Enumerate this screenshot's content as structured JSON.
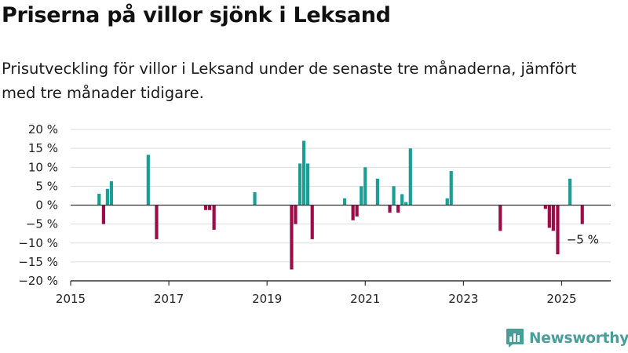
{
  "title": "Priserna på villor sjönk i Leksand",
  "subtitle": "Prisutveckling för villor i Leksand under de senaste tre månaderna, jämfört med tre månader tidigare.",
  "brand": {
    "name": "Newsworthy",
    "logo_icon": "newsworthy-logo-icon"
  },
  "colors": {
    "positive": "#1b9e94",
    "negative": "#9b0c48",
    "grid": "#dddddd",
    "axis": "#333333",
    "text": "#222222"
  },
  "chart_data": {
    "type": "bar",
    "title": "Priserna på villor sjönk i Leksand",
    "xlabel": "",
    "ylabel": "",
    "xlim": [
      2015.0,
      2026.0
    ],
    "ylim": [
      -20,
      20
    ],
    "y_ticks": [
      20,
      15,
      10,
      5,
      0,
      -5,
      -10,
      -15,
      -20
    ],
    "y_tick_labels": [
      "20 %",
      "15 %",
      "10 %",
      "5 %",
      "0 %",
      "−5 %",
      "−10 %",
      "−15 %",
      "−20 %"
    ],
    "x_ticks": [
      2015,
      2017,
      2019,
      2021,
      2023,
      2025
    ],
    "x_tick_labels": [
      "2015",
      "2017",
      "2019",
      "2021",
      "2023",
      "2025"
    ],
    "grid": true,
    "annotation": {
      "x": 2025.42,
      "y": -5,
      "label": "−5 %"
    },
    "points": [
      {
        "x": 2015.58,
        "y": 3
      },
      {
        "x": 2015.67,
        "y": -5
      },
      {
        "x": 2015.75,
        "y": 4.3
      },
      {
        "x": 2015.83,
        "y": 6.3
      },
      {
        "x": 2016.58,
        "y": 13.3
      },
      {
        "x": 2016.75,
        "y": -9
      },
      {
        "x": 2017.75,
        "y": -1.3
      },
      {
        "x": 2017.83,
        "y": -1.3
      },
      {
        "x": 2017.92,
        "y": -6.5
      },
      {
        "x": 2018.75,
        "y": 3.4
      },
      {
        "x": 2019.5,
        "y": -17
      },
      {
        "x": 2019.58,
        "y": -5
      },
      {
        "x": 2019.67,
        "y": 11
      },
      {
        "x": 2019.75,
        "y": 17
      },
      {
        "x": 2019.83,
        "y": 11
      },
      {
        "x": 2019.92,
        "y": -9
      },
      {
        "x": 2020.58,
        "y": 1.8
      },
      {
        "x": 2020.75,
        "y": -4
      },
      {
        "x": 2020.83,
        "y": -3
      },
      {
        "x": 2020.92,
        "y": 5
      },
      {
        "x": 2021.0,
        "y": 10
      },
      {
        "x": 2021.25,
        "y": 7
      },
      {
        "x": 2021.5,
        "y": -2
      },
      {
        "x": 2021.58,
        "y": 5
      },
      {
        "x": 2021.67,
        "y": -2
      },
      {
        "x": 2021.75,
        "y": 2.9
      },
      {
        "x": 2021.83,
        "y": 0.8
      },
      {
        "x": 2021.92,
        "y": 15
      },
      {
        "x": 2022.67,
        "y": 1.8
      },
      {
        "x": 2022.75,
        "y": 9
      },
      {
        "x": 2023.75,
        "y": -6.8
      },
      {
        "x": 2024.67,
        "y": -1
      },
      {
        "x": 2024.75,
        "y": -6
      },
      {
        "x": 2024.83,
        "y": -6.8
      },
      {
        "x": 2024.92,
        "y": -13
      },
      {
        "x": 2025.17,
        "y": 7
      },
      {
        "x": 2025.42,
        "y": -5
      }
    ]
  }
}
